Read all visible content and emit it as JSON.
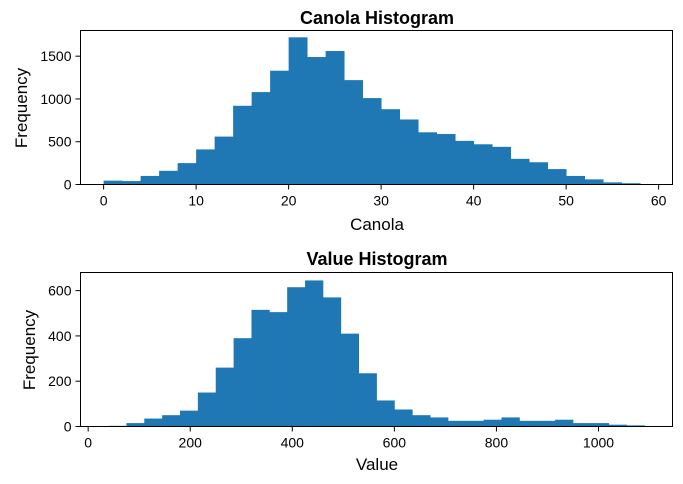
{
  "chart_data": [
    {
      "type": "bar",
      "title": "Canola Histogram",
      "xlabel": "Canola",
      "ylabel": "Frequency",
      "xlim": [
        -2.5,
        61.5
      ],
      "ylim": [
        0,
        1800
      ],
      "xticks": [
        0,
        10,
        20,
        30,
        40,
        50,
        60
      ],
      "yticks": [
        0,
        500,
        1000,
        1500
      ],
      "bar_color": "#1f77b4",
      "grid": false,
      "bins": [
        {
          "x0": 0.0,
          "x1": 2.0,
          "count": 45
        },
        {
          "x0": 2.0,
          "x1": 4.0,
          "count": 40
        },
        {
          "x0": 4.0,
          "x1": 6.0,
          "count": 100
        },
        {
          "x0": 6.0,
          "x1": 8.0,
          "count": 160
        },
        {
          "x0": 8.0,
          "x1": 10.0,
          "count": 250
        },
        {
          "x0": 10.0,
          "x1": 12.0,
          "count": 410
        },
        {
          "x0": 12.0,
          "x1": 14.0,
          "count": 560
        },
        {
          "x0": 14.0,
          "x1": 16.0,
          "count": 920
        },
        {
          "x0": 16.0,
          "x1": 18.0,
          "count": 1080
        },
        {
          "x0": 18.0,
          "x1": 20.0,
          "count": 1330
        },
        {
          "x0": 20.0,
          "x1": 22.0,
          "count": 1720
        },
        {
          "x0": 22.0,
          "x1": 24.0,
          "count": 1490
        },
        {
          "x0": 24.0,
          "x1": 26.0,
          "count": 1560
        },
        {
          "x0": 26.0,
          "x1": 28.0,
          "count": 1220
        },
        {
          "x0": 28.0,
          "x1": 30.0,
          "count": 1010
        },
        {
          "x0": 30.0,
          "x1": 32.0,
          "count": 880
        },
        {
          "x0": 32.0,
          "x1": 34.0,
          "count": 760
        },
        {
          "x0": 34.0,
          "x1": 36.0,
          "count": 610
        },
        {
          "x0": 36.0,
          "x1": 38.0,
          "count": 590
        },
        {
          "x0": 38.0,
          "x1": 40.0,
          "count": 510
        },
        {
          "x0": 40.0,
          "x1": 42.0,
          "count": 470
        },
        {
          "x0": 42.0,
          "x1": 44.0,
          "count": 440
        },
        {
          "x0": 44.0,
          "x1": 46.0,
          "count": 300
        },
        {
          "x0": 46.0,
          "x1": 48.0,
          "count": 260
        },
        {
          "x0": 48.0,
          "x1": 50.0,
          "count": 180
        },
        {
          "x0": 50.0,
          "x1": 52.0,
          "count": 100
        },
        {
          "x0": 52.0,
          "x1": 54.0,
          "count": 60
        },
        {
          "x0": 54.0,
          "x1": 56.0,
          "count": 25
        },
        {
          "x0": 56.0,
          "x1": 58.0,
          "count": 15
        },
        {
          "x0": 58.0,
          "x1": 60.0,
          "count": 5
        }
      ]
    },
    {
      "type": "bar",
      "title": "Value Histogram",
      "xlabel": "Value",
      "ylabel": "Frequency",
      "xlim": [
        -15,
        1145
      ],
      "ylim": [
        0,
        680
      ],
      "xticks": [
        0,
        200,
        400,
        600,
        800,
        1000
      ],
      "yticks": [
        0,
        200,
        400,
        600
      ],
      "bar_color": "#1f77b4",
      "grid": false,
      "bins": [
        {
          "x0": 40,
          "x1": 75,
          "count": 3
        },
        {
          "x0": 75,
          "x1": 110,
          "count": 15
        },
        {
          "x0": 110,
          "x1": 145,
          "count": 35
        },
        {
          "x0": 145,
          "x1": 180,
          "count": 50
        },
        {
          "x0": 180,
          "x1": 215,
          "count": 70
        },
        {
          "x0": 215,
          "x1": 250,
          "count": 150
        },
        {
          "x0": 250,
          "x1": 285,
          "count": 260
        },
        {
          "x0": 285,
          "x1": 320,
          "count": 390
        },
        {
          "x0": 320,
          "x1": 355,
          "count": 515
        },
        {
          "x0": 355,
          "x1": 390,
          "count": 505
        },
        {
          "x0": 390,
          "x1": 425,
          "count": 615
        },
        {
          "x0": 425,
          "x1": 460,
          "count": 645
        },
        {
          "x0": 460,
          "x1": 495,
          "count": 570
        },
        {
          "x0": 495,
          "x1": 530,
          "count": 410
        },
        {
          "x0": 530,
          "x1": 565,
          "count": 235
        },
        {
          "x0": 565,
          "x1": 600,
          "count": 115
        },
        {
          "x0": 600,
          "x1": 635,
          "count": 75
        },
        {
          "x0": 635,
          "x1": 670,
          "count": 50
        },
        {
          "x0": 670,
          "x1": 705,
          "count": 40
        },
        {
          "x0": 705,
          "x1": 740,
          "count": 25
        },
        {
          "x0": 740,
          "x1": 775,
          "count": 25
        },
        {
          "x0": 775,
          "x1": 810,
          "count": 30
        },
        {
          "x0": 810,
          "x1": 845,
          "count": 40
        },
        {
          "x0": 845,
          "x1": 880,
          "count": 25
        },
        {
          "x0": 880,
          "x1": 915,
          "count": 25
        },
        {
          "x0": 915,
          "x1": 950,
          "count": 30
        },
        {
          "x0": 950,
          "x1": 985,
          "count": 15
        },
        {
          "x0": 985,
          "x1": 1020,
          "count": 15
        },
        {
          "x0": 1020,
          "x1": 1055,
          "count": 8
        },
        {
          "x0": 1055,
          "x1": 1090,
          "count": 5
        }
      ]
    }
  ]
}
